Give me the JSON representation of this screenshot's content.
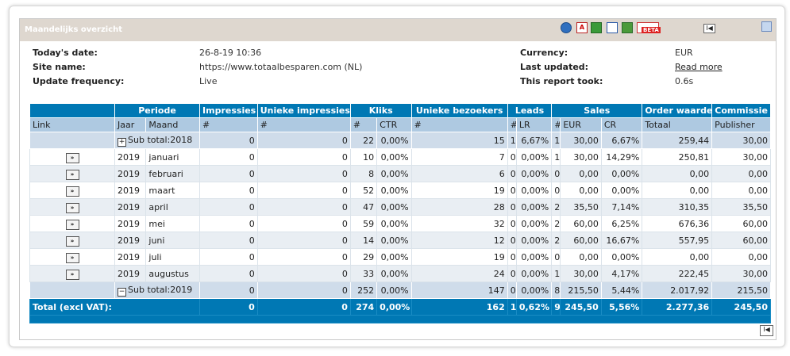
{
  "panel": {
    "title": "Maandelijks overzicht"
  },
  "info": {
    "left": [
      {
        "label": "Today's date:",
        "value": "26-8-19 10:36"
      },
      {
        "label": "Site name:",
        "value": "https://www.totaalbesparen.com (NL)"
      },
      {
        "label": "Update frequency:",
        "value": "Live"
      }
    ],
    "right": [
      {
        "label": "Currency:",
        "value": "EUR"
      },
      {
        "label": "Last updated:",
        "value": "Read more"
      },
      {
        "label": "This report took:",
        "value": "0.6s"
      }
    ]
  },
  "icons": {
    "pdf_text": "A",
    "beta_text": "BETA",
    "first_page": "I◀",
    "expand_button": "»",
    "plus": "+",
    "minus": "−"
  },
  "table": {
    "groups": [
      "Periode",
      "Impressies",
      "Unieke impressies",
      "Kliks",
      "Unieke bezoekers",
      "Leads",
      "Sales",
      "Order waarde",
      "Commissie"
    ],
    "columns": [
      "Link",
      "Jaar",
      "Maand",
      "#",
      "#",
      "#",
      "CTR",
      "#",
      "#",
      "LR",
      "#",
      "EUR",
      "CR",
      "Totaal",
      "Publisher"
    ],
    "subtotal_2018": {
      "label": "Sub total:2018",
      "impressies": "0",
      "unieke_impressies": "0",
      "kliks": "22",
      "ctr": "0,00%",
      "unieke_bezoekers": "15",
      "leads": "1",
      "lr": "6,67%",
      "sales": "1",
      "eur": "30,00",
      "cr": "6,67%",
      "totaal": "259,44",
      "publisher": "30,00"
    },
    "rows": [
      {
        "jaar": "2019",
        "maand": "januari",
        "impressies": "0",
        "unieke_impressies": "0",
        "kliks": "10",
        "ctr": "0,00%",
        "unieke_bezoekers": "7",
        "leads": "0",
        "lr": "0,00%",
        "sales": "1",
        "eur": "30,00",
        "cr": "14,29%",
        "totaal": "250,81",
        "publisher": "30,00"
      },
      {
        "jaar": "2019",
        "maand": "februari",
        "impressies": "0",
        "unieke_impressies": "0",
        "kliks": "8",
        "ctr": "0,00%",
        "unieke_bezoekers": "6",
        "leads": "0",
        "lr": "0,00%",
        "sales": "0",
        "eur": "0,00",
        "cr": "0,00%",
        "totaal": "0,00",
        "publisher": "0,00"
      },
      {
        "jaar": "2019",
        "maand": "maart",
        "impressies": "0",
        "unieke_impressies": "0",
        "kliks": "52",
        "ctr": "0,00%",
        "unieke_bezoekers": "19",
        "leads": "0",
        "lr": "0,00%",
        "sales": "0",
        "eur": "0,00",
        "cr": "0,00%",
        "totaal": "0,00",
        "publisher": "0,00"
      },
      {
        "jaar": "2019",
        "maand": "april",
        "impressies": "0",
        "unieke_impressies": "0",
        "kliks": "47",
        "ctr": "0,00%",
        "unieke_bezoekers": "28",
        "leads": "0",
        "lr": "0,00%",
        "sales": "2",
        "eur": "35,50",
        "cr": "7,14%",
        "totaal": "310,35",
        "publisher": "35,50"
      },
      {
        "jaar": "2019",
        "maand": "mei",
        "impressies": "0",
        "unieke_impressies": "0",
        "kliks": "59",
        "ctr": "0,00%",
        "unieke_bezoekers": "32",
        "leads": "0",
        "lr": "0,00%",
        "sales": "2",
        "eur": "60,00",
        "cr": "6,25%",
        "totaal": "676,36",
        "publisher": "60,00"
      },
      {
        "jaar": "2019",
        "maand": "juni",
        "impressies": "0",
        "unieke_impressies": "0",
        "kliks": "14",
        "ctr": "0,00%",
        "unieke_bezoekers": "12",
        "leads": "0",
        "lr": "0,00%",
        "sales": "2",
        "eur": "60,00",
        "cr": "16,67%",
        "totaal": "557,95",
        "publisher": "60,00"
      },
      {
        "jaar": "2019",
        "maand": "juli",
        "impressies": "0",
        "unieke_impressies": "0",
        "kliks": "29",
        "ctr": "0,00%",
        "unieke_bezoekers": "19",
        "leads": "0",
        "lr": "0,00%",
        "sales": "0",
        "eur": "0,00",
        "cr": "0,00%",
        "totaal": "0,00",
        "publisher": "0,00"
      },
      {
        "jaar": "2019",
        "maand": "augustus",
        "impressies": "0",
        "unieke_impressies": "0",
        "kliks": "33",
        "ctr": "0,00%",
        "unieke_bezoekers": "24",
        "leads": "0",
        "lr": "0,00%",
        "sales": "1",
        "eur": "30,00",
        "cr": "4,17%",
        "totaal": "222,45",
        "publisher": "30,00"
      }
    ],
    "subtotal_2019": {
      "label": "Sub total:2019",
      "impressies": "0",
      "unieke_impressies": "0",
      "kliks": "252",
      "ctr": "0,00%",
      "unieke_bezoekers": "147",
      "leads": "0",
      "lr": "0,00%",
      "sales": "8",
      "eur": "215,50",
      "cr": "5,44%",
      "totaal": "2.017,92",
      "publisher": "215,50"
    },
    "total": {
      "label": "Total (excl VAT):",
      "impressies": "0",
      "unieke_impressies": "0",
      "kliks": "274",
      "ctr": "0,00%",
      "unieke_bezoekers": "162",
      "leads": "1",
      "lr": "0,62%",
      "sales": "9",
      "eur": "245,50",
      "cr": "5,56%",
      "totaal": "2.277,36",
      "publisher": "245,50"
    }
  }
}
